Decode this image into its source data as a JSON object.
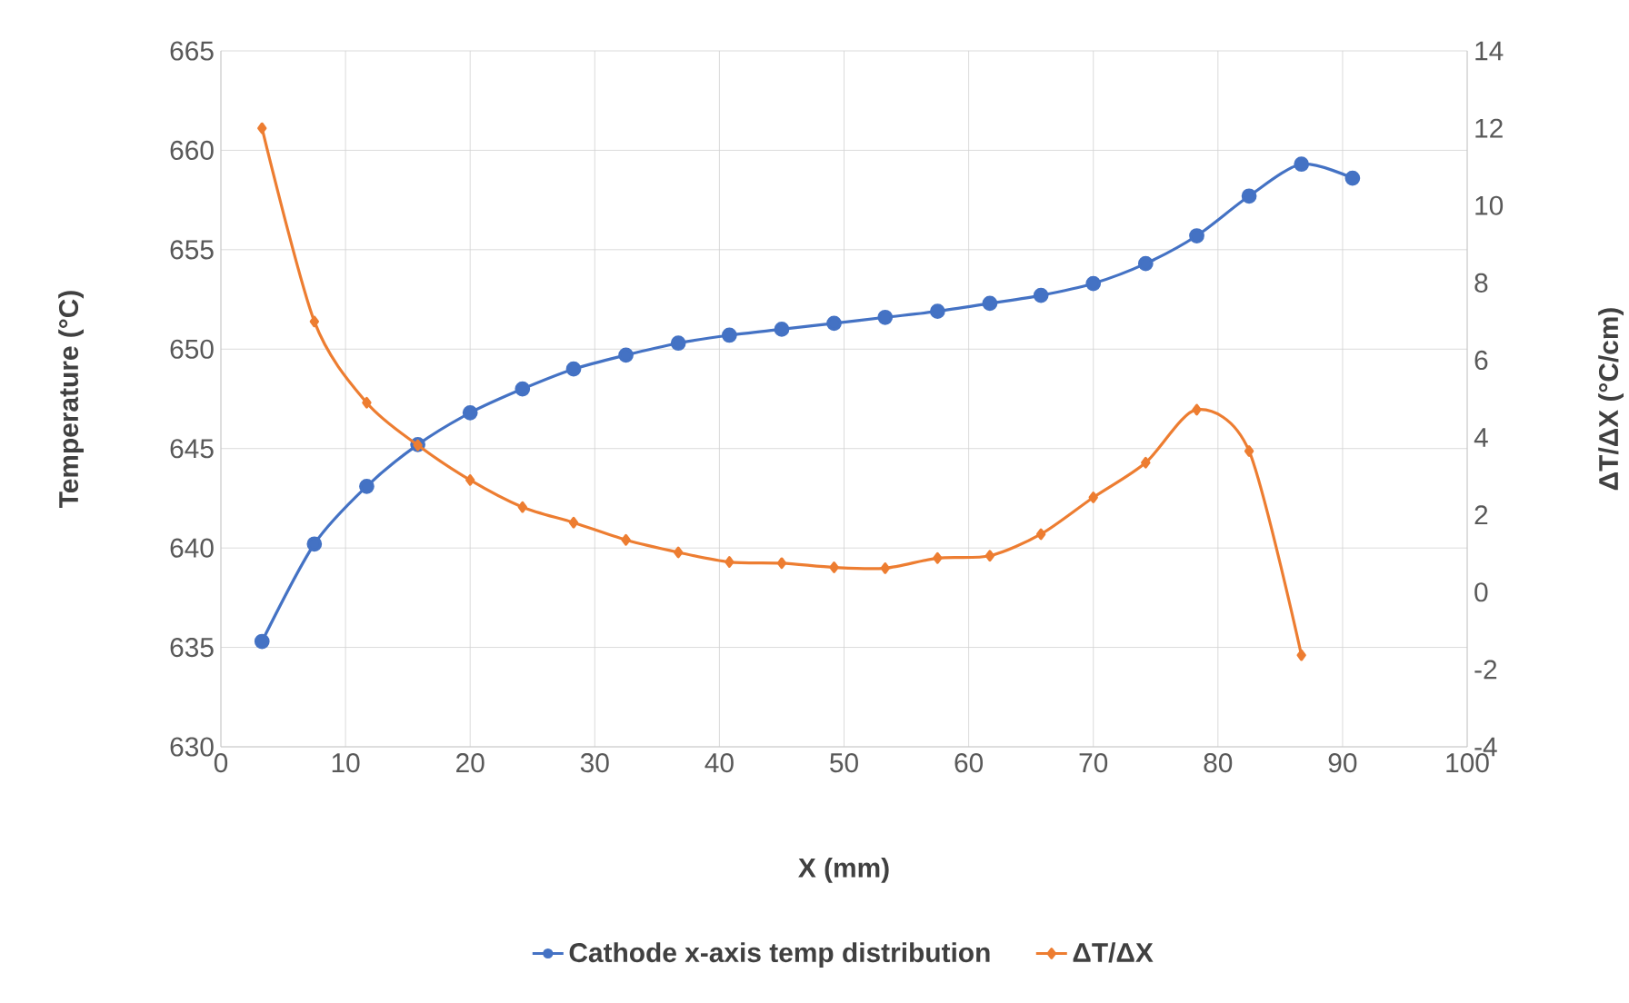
{
  "chart_data": {
    "type": "line",
    "xlabel": "X (mm)",
    "ylabel": "Temperature (°C)",
    "y2label": "ΔT/ΔX (°C/cm)",
    "xlim": [
      0,
      100
    ],
    "xticks": [
      0,
      10,
      20,
      30,
      40,
      50,
      60,
      70,
      80,
      90,
      100
    ],
    "ylim": [
      630,
      665
    ],
    "yticks": [
      630,
      635,
      640,
      645,
      650,
      655,
      660,
      665
    ],
    "y2lim": [
      -4,
      14
    ],
    "y2ticks": [
      -4,
      -2,
      0,
      2,
      4,
      6,
      8,
      10,
      12,
      14
    ],
    "grid": true,
    "legend": "bottom",
    "series": [
      {
        "name": "Cathode x-axis temp distribution",
        "color": "#4472c4",
        "marker": "circle",
        "line_style": "solid",
        "axis": "y",
        "x": [
          3.3,
          7.5,
          11.7,
          15.8,
          20,
          24.2,
          28.3,
          32.5,
          36.7,
          40.8,
          45,
          49.2,
          53.3,
          57.5,
          61.7,
          65.8,
          70,
          74.2,
          78.3,
          82.5,
          86.7,
          90.8
        ],
        "values": [
          635.3,
          640.2,
          643.1,
          645.2,
          646.8,
          648.0,
          649.0,
          649.7,
          650.3,
          650.7,
          651.0,
          651.3,
          651.6,
          651.9,
          652.3,
          652.7,
          653.3,
          654.3,
          655.7,
          657.7,
          659.3,
          658.6
        ]
      },
      {
        "name": "ΔT/ΔX",
        "color": "#ed7d31",
        "marker": "diamond",
        "line_style": "solid",
        "axis": "y2",
        "x": [
          3.3,
          7.5,
          11.7,
          15.8,
          20,
          24.2,
          28.3,
          32.5,
          36.7,
          40.8,
          45,
          49.2,
          53.3,
          57.5,
          61.7,
          65.8,
          70,
          74.2,
          78.3,
          82.5,
          86.7
        ],
        "values": [
          12.0,
          7.0,
          4.9,
          3.8,
          2.9,
          2.2,
          1.8,
          1.35,
          1.03,
          0.78,
          0.75,
          0.64,
          0.62,
          0.88,
          0.94,
          1.5,
          2.45,
          3.35,
          4.72,
          3.65,
          -1.63
        ]
      }
    ]
  }
}
